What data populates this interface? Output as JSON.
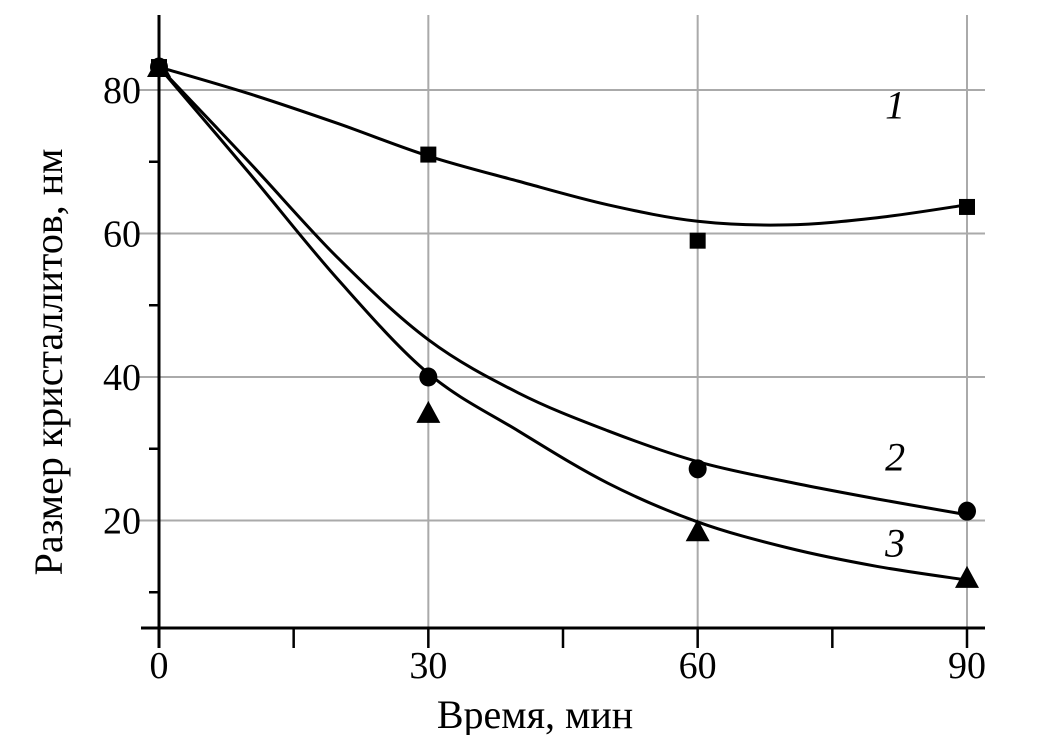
{
  "chart_data": {
    "type": "line",
    "title": "",
    "xlabel": "Время, мин",
    "ylabel": "Размер кристаллитов, нм",
    "xlim": [
      0,
      92
    ],
    "ylim": [
      5,
      90.5
    ],
    "xticks": [
      0,
      30,
      60,
      90
    ],
    "xtick_labels": [
      "0",
      "30",
      "60",
      "90"
    ],
    "xminor": [
      15,
      45,
      75
    ],
    "yticks": [
      20,
      40,
      60,
      80
    ],
    "ytick_labels": [
      "20",
      "40",
      "60",
      "80"
    ],
    "yminor": [
      10,
      30,
      50,
      70
    ],
    "grid": true,
    "series": [
      {
        "name": "1",
        "marker": "square",
        "x": [
          0,
          30,
          60,
          90
        ],
        "values": [
          83.2,
          71.0,
          59.0,
          63.7
        ],
        "fit_x": [
          0,
          10,
          20,
          30,
          40,
          50,
          60,
          70,
          80,
          90
        ],
        "fit": [
          83.2,
          79.5,
          75.3,
          70.8,
          67.3,
          64.0,
          61.7,
          61.2,
          62.2,
          64.0
        ],
        "label_at": [
          82,
          76
        ]
      },
      {
        "name": "2",
        "marker": "circle",
        "x": [
          0,
          30,
          60,
          90
        ],
        "values": [
          83.2,
          40.0,
          27.2,
          21.3
        ],
        "fit_x": [
          0,
          10,
          20,
          30,
          40,
          50,
          60,
          70,
          80,
          90
        ],
        "fit": [
          83.2,
          70.0,
          56.5,
          45.2,
          37.8,
          32.5,
          28.2,
          25.4,
          23.0,
          20.8
        ],
        "label_at": [
          82,
          27
        ]
      },
      {
        "name": "3",
        "marker": "triangle",
        "x": [
          0,
          30,
          60,
          90
        ],
        "values": [
          83.2,
          35.0,
          18.5,
          12.0
        ],
        "fit_x": [
          0,
          10,
          20,
          30,
          40,
          50,
          60,
          70,
          80,
          90
        ],
        "fit": [
          83.2,
          68.5,
          53.5,
          40.5,
          32.5,
          25.2,
          19.8,
          16.2,
          13.6,
          11.7
        ],
        "label_at": [
          82,
          15
        ]
      }
    ]
  }
}
